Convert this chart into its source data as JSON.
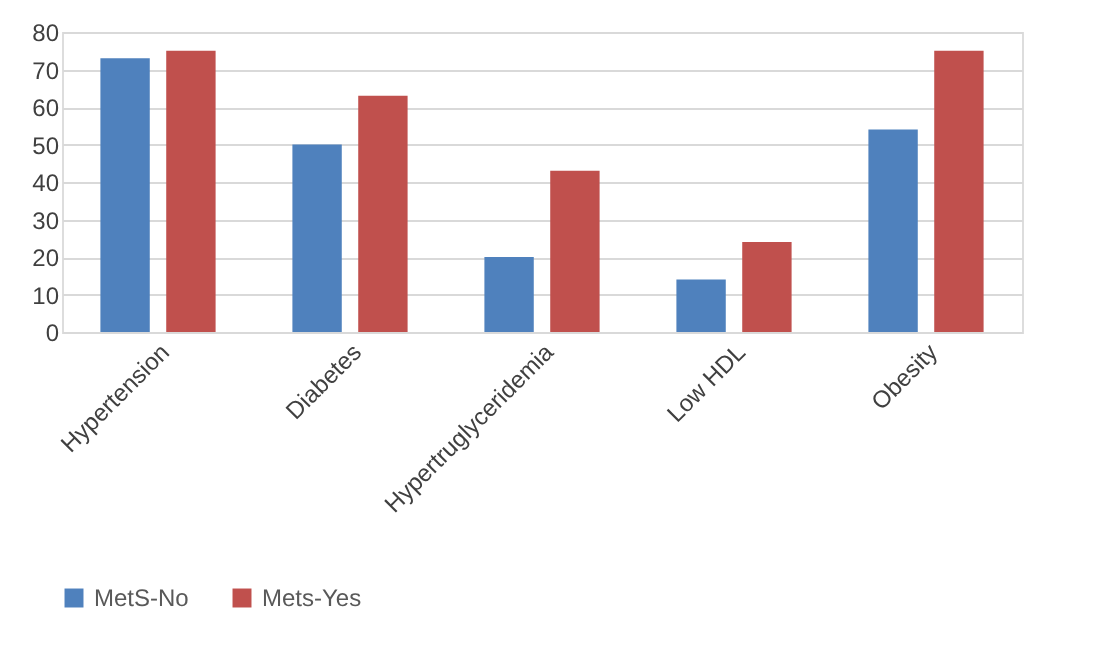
{
  "chart_data": {
    "type": "bar",
    "categories": [
      "Hypertension",
      "Diabetes",
      "Hypertruglyceridemia",
      "Low HDL",
      "Obesity"
    ],
    "series": [
      {
        "name": "MetS-No",
        "color": "#4f81bd",
        "values": [
          73,
          50,
          20,
          14,
          54
        ]
      },
      {
        "name": "Mets-Yes",
        "color": "#c0504d",
        "values": [
          75,
          63,
          43,
          24,
          75
        ]
      }
    ],
    "ylim": [
      0,
      80
    ],
    "yticks": [
      0,
      10,
      20,
      30,
      40,
      50,
      60,
      70,
      80
    ],
    "grid": "y",
    "legend": "bottom"
  }
}
